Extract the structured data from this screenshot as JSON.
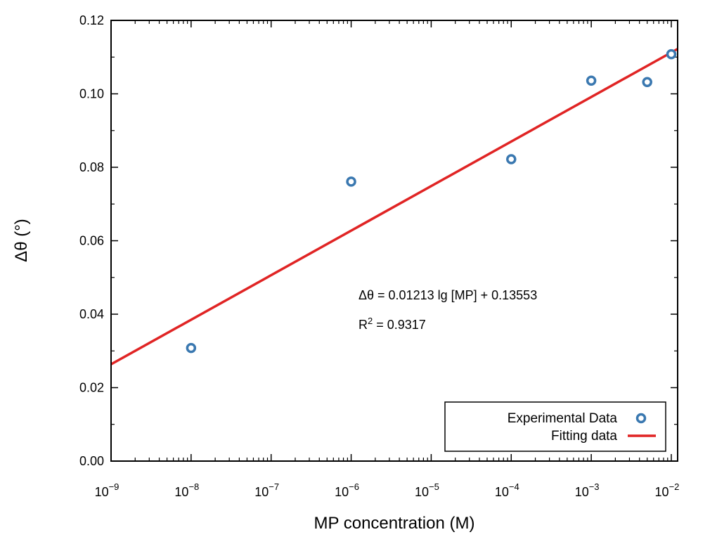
{
  "chart_data": {
    "type": "scatter",
    "xscale": "log",
    "xlabel": "MP concentration (M)",
    "ylabel": "Δθ (°)",
    "xlim": [
      1e-09,
      0.012
    ],
    "ylim": [
      0,
      0.12
    ],
    "x_ticks": [
      {
        "value": 1e-09,
        "base": "10",
        "exp": "−9"
      },
      {
        "value": 1e-08,
        "base": "10",
        "exp": "−8"
      },
      {
        "value": 1e-07,
        "base": "10",
        "exp": "−7"
      },
      {
        "value": 1e-06,
        "base": "10",
        "exp": "−6"
      },
      {
        "value": 1e-05,
        "base": "10",
        "exp": "−5"
      },
      {
        "value": 0.0001,
        "base": "10",
        "exp": "−4"
      },
      {
        "value": 0.001,
        "base": "10",
        "exp": "−3"
      },
      {
        "value": 0.01,
        "base": "10",
        "exp": "−2"
      }
    ],
    "y_ticks": [
      "0.00",
      "0.02",
      "0.04",
      "0.06",
      "0.08",
      "0.10",
      "0.12"
    ],
    "series": [
      {
        "name": "Experimental Data",
        "kind": "scatter",
        "color": "#3a78b0",
        "points": [
          {
            "x": 1e-08,
            "y": 0.0308
          },
          {
            "x": 1e-06,
            "y": 0.0761
          },
          {
            "x": 0.0001,
            "y": 0.0822
          },
          {
            "x": 0.001,
            "y": 0.1036
          },
          {
            "x": 0.005,
            "y": 0.1032
          },
          {
            "x": 0.01,
            "y": 0.1108
          }
        ]
      },
      {
        "name": "Fitting data",
        "kind": "line",
        "color": "#e02424",
        "slope": 0.01213,
        "intercept": 0.13553
      }
    ],
    "annotations": {
      "equation": "Δθ = 0.01213 lg [MP] + 0.13553",
      "r2_prefix": "R",
      "r2_sup": "2",
      "r2_value": " = 0.9317"
    },
    "legend_position": "bottom-right",
    "grid": false
  }
}
